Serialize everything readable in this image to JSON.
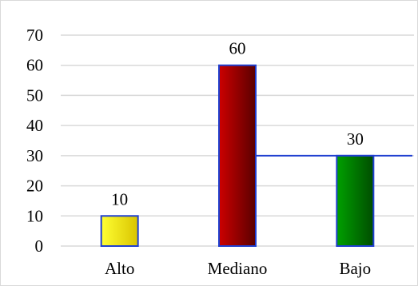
{
  "chart_data": {
    "type": "bar",
    "categories": [
      "Alto",
      "Mediano",
      "Bajo"
    ],
    "values": [
      10,
      60,
      30
    ],
    "data_labels": [
      "10",
      "60",
      "30"
    ],
    "title": "",
    "xlabel": "",
    "ylabel": "",
    "ylim": [
      0,
      70
    ],
    "yticks": [
      0,
      10,
      20,
      30,
      40,
      50,
      60,
      70
    ],
    "ytick_labels": [
      "0",
      "10",
      "20",
      "30",
      "40",
      "50",
      "60",
      "70"
    ],
    "grid": true,
    "legend": "none",
    "colors": {
      "Alto": [
        "#ffff33",
        "#d9c400"
      ],
      "Mediano": [
        "#cc0000",
        "#5a0000"
      ],
      "Bajo": [
        "#00a000",
        "#004d00"
      ],
      "bar_border": "#1f3fd0",
      "trend_line": "#1f3fd0",
      "grid": "#d9d9d9"
    }
  }
}
